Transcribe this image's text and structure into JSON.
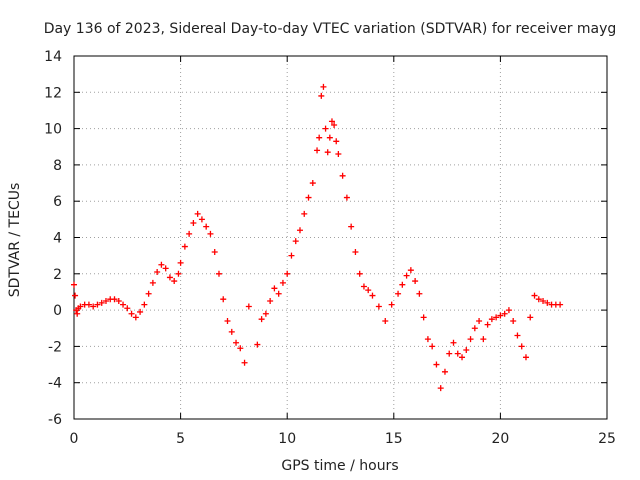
{
  "chart_data": {
    "type": "scatter",
    "title": "Day 136 of 2023, Sidereal Day-to-day VTEC variation (SDTVAR) for receiver mayg",
    "xlabel": "GPS time / hours",
    "ylabel": "SDTVAR / TECUs",
    "xlim": [
      0,
      25
    ],
    "ylim": [
      -6,
      14
    ],
    "xticks": [
      0,
      5,
      10,
      15,
      20,
      25
    ],
    "yticks": [
      -6,
      -4,
      -2,
      0,
      2,
      4,
      6,
      8,
      10,
      12,
      14
    ],
    "grid": true,
    "marker": "+",
    "color": "#ff0000",
    "series": [
      {
        "name": "SDTVAR",
        "x": [
          0,
          0.05,
          0.1,
          0.15,
          0.2,
          0.3,
          0.5,
          0.7,
          0.9,
          1.1,
          1.3,
          1.5,
          1.7,
          1.9,
          2.1,
          2.3,
          2.5,
          2.7,
          2.9,
          3.1,
          3.3,
          3.5,
          3.7,
          3.9,
          4.1,
          4.3,
          4.5,
          4.7,
          4.9,
          5.0,
          5.2,
          5.4,
          5.6,
          5.8,
          6.0,
          6.2,
          6.4,
          6.6,
          6.8,
          7.0,
          7.2,
          7.4,
          7.6,
          7.8,
          8.0,
          8.2,
          8.6,
          8.8,
          9.0,
          9.2,
          9.4,
          9.6,
          9.8,
          10.0,
          10.2,
          10.4,
          10.6,
          10.8,
          11.0,
          11.2,
          11.4,
          11.5,
          11.6,
          11.7,
          11.8,
          11.9,
          12.0,
          12.1,
          12.2,
          12.3,
          12.4,
          12.6,
          12.8,
          13.0,
          13.2,
          13.4,
          13.6,
          13.8,
          14.0,
          14.3,
          14.6,
          14.9,
          15.2,
          15.4,
          15.6,
          15.8,
          16.0,
          16.2,
          16.4,
          16.6,
          16.8,
          17.0,
          17.2,
          17.4,
          17.6,
          17.8,
          18.0,
          18.2,
          18.4,
          18.6,
          18.8,
          19.0,
          19.2,
          19.4,
          19.6,
          19.8,
          20.0,
          20.2,
          20.4,
          20.6,
          20.8,
          21.0,
          21.2,
          21.4,
          21.6,
          21.8,
          22.0,
          22.2,
          22.4,
          22.6,
          22.8
        ],
        "y": [
          1.4,
          0.8,
          0.0,
          -0.2,
          0.1,
          0.2,
          0.3,
          0.3,
          0.2,
          0.3,
          0.4,
          0.5,
          0.6,
          0.6,
          0.5,
          0.3,
          0.1,
          -0.2,
          -0.4,
          -0.1,
          0.3,
          0.9,
          1.5,
          2.1,
          2.5,
          2.3,
          1.8,
          1.6,
          2.0,
          2.6,
          3.5,
          4.2,
          4.8,
          5.3,
          5.0,
          4.6,
          4.2,
          3.2,
          2.0,
          0.6,
          -0.6,
          -1.2,
          -1.8,
          -2.1,
          -2.9,
          0.2,
          -1.9,
          -0.5,
          -0.2,
          0.5,
          1.2,
          0.9,
          1.5,
          2.0,
          3.0,
          3.8,
          4.4,
          5.3,
          6.2,
          7.0,
          8.8,
          9.5,
          11.8,
          12.3,
          10.0,
          8.7,
          9.5,
          10.4,
          10.2,
          9.3,
          8.6,
          7.4,
          6.2,
          4.6,
          3.2,
          2.0,
          1.3,
          1.1,
          0.8,
          0.2,
          -0.6,
          0.3,
          0.9,
          1.4,
          1.9,
          2.2,
          1.6,
          0.9,
          -0.4,
          -1.6,
          -2.0,
          -3.0,
          -4.3,
          -3.4,
          -2.4,
          -1.8,
          -2.4,
          -2.6,
          -2.2,
          -1.6,
          -1.0,
          -0.6,
          -1.6,
          -0.8,
          -0.5,
          -0.4,
          -0.3,
          -0.2,
          0.0,
          -0.6,
          -1.4,
          -2.0,
          -2.6,
          -0.4,
          0.8,
          0.6,
          0.5,
          0.4,
          0.3,
          0.3,
          0.3
        ]
      }
    ]
  }
}
